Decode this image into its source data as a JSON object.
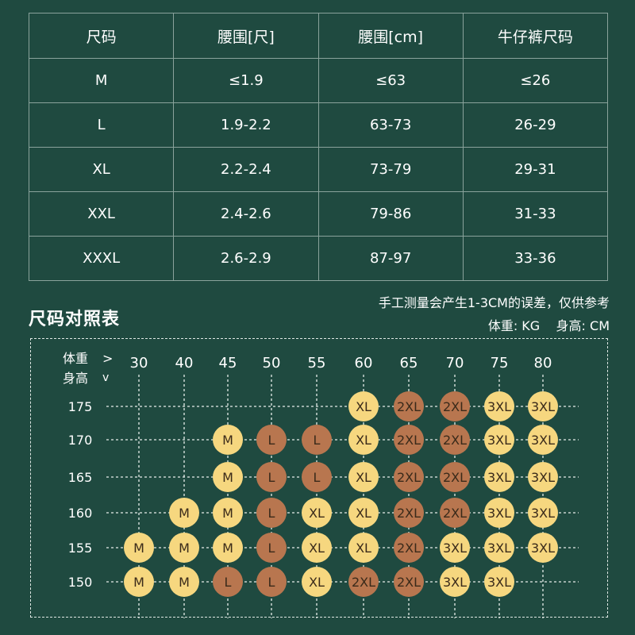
{
  "table": {
    "headers": [
      "尺码",
      "腰围[尺]",
      "腰围[cm]",
      "牛仔裤尺码"
    ],
    "rows": [
      [
        "M",
        "≤1.9",
        "≤63",
        "≤26"
      ],
      [
        "L",
        "1.9-2.2",
        "63-73",
        "26-29"
      ],
      [
        "XL",
        "2.2-2.4",
        "73-79",
        "29-31"
      ],
      [
        "XXL",
        "2.4-2.6",
        "79-86",
        "31-33"
      ],
      [
        "XXXL",
        "2.6-2.9",
        "87-97",
        "33-36"
      ]
    ]
  },
  "section": {
    "title": "尺码对照表",
    "note": "手工测量会产生1-3CM的误差，仅供参考",
    "units": "体重: KG    身高: CM"
  },
  "chart_data": {
    "type": "table",
    "x_header": "体重",
    "x_arrow": ">",
    "y_header": "身高",
    "y_arrow": "v",
    "weights": [
      30,
      40,
      45,
      50,
      55,
      60,
      65,
      70,
      75,
      80
    ],
    "heights": [
      175,
      170,
      165,
      160,
      155,
      150
    ],
    "grid": [
      [
        "",
        "",
        "",
        "",
        "",
        "XL",
        "2XL",
        "2XL",
        "3XL",
        "3XL"
      ],
      [
        "",
        "",
        "M",
        "L",
        "L",
        "XL",
        "2XL",
        "2XL",
        "3XL",
        "3XL"
      ],
      [
        "",
        "",
        "M",
        "L",
        "L",
        "XL",
        "2XL",
        "2XL",
        "3XL",
        "3XL"
      ],
      [
        "",
        "M",
        "M",
        "L",
        "XL",
        "XL",
        "2XL",
        "2XL",
        "3XL",
        "3XL"
      ],
      [
        "M",
        "M",
        "M",
        "L",
        "XL",
        "XL",
        "2XL",
        "3XL",
        "3XL",
        "3XL"
      ],
      [
        "M",
        "M",
        "L",
        "L",
        "XL",
        "2XL",
        "2XL",
        "3XL",
        "3XL",
        ""
      ]
    ],
    "colors": {
      "M": "#f6d77f",
      "L": "#b8764f",
      "XL": "#f6d77f",
      "2XL": "#b8764f",
      "3XL": "#f6d77f"
    }
  }
}
